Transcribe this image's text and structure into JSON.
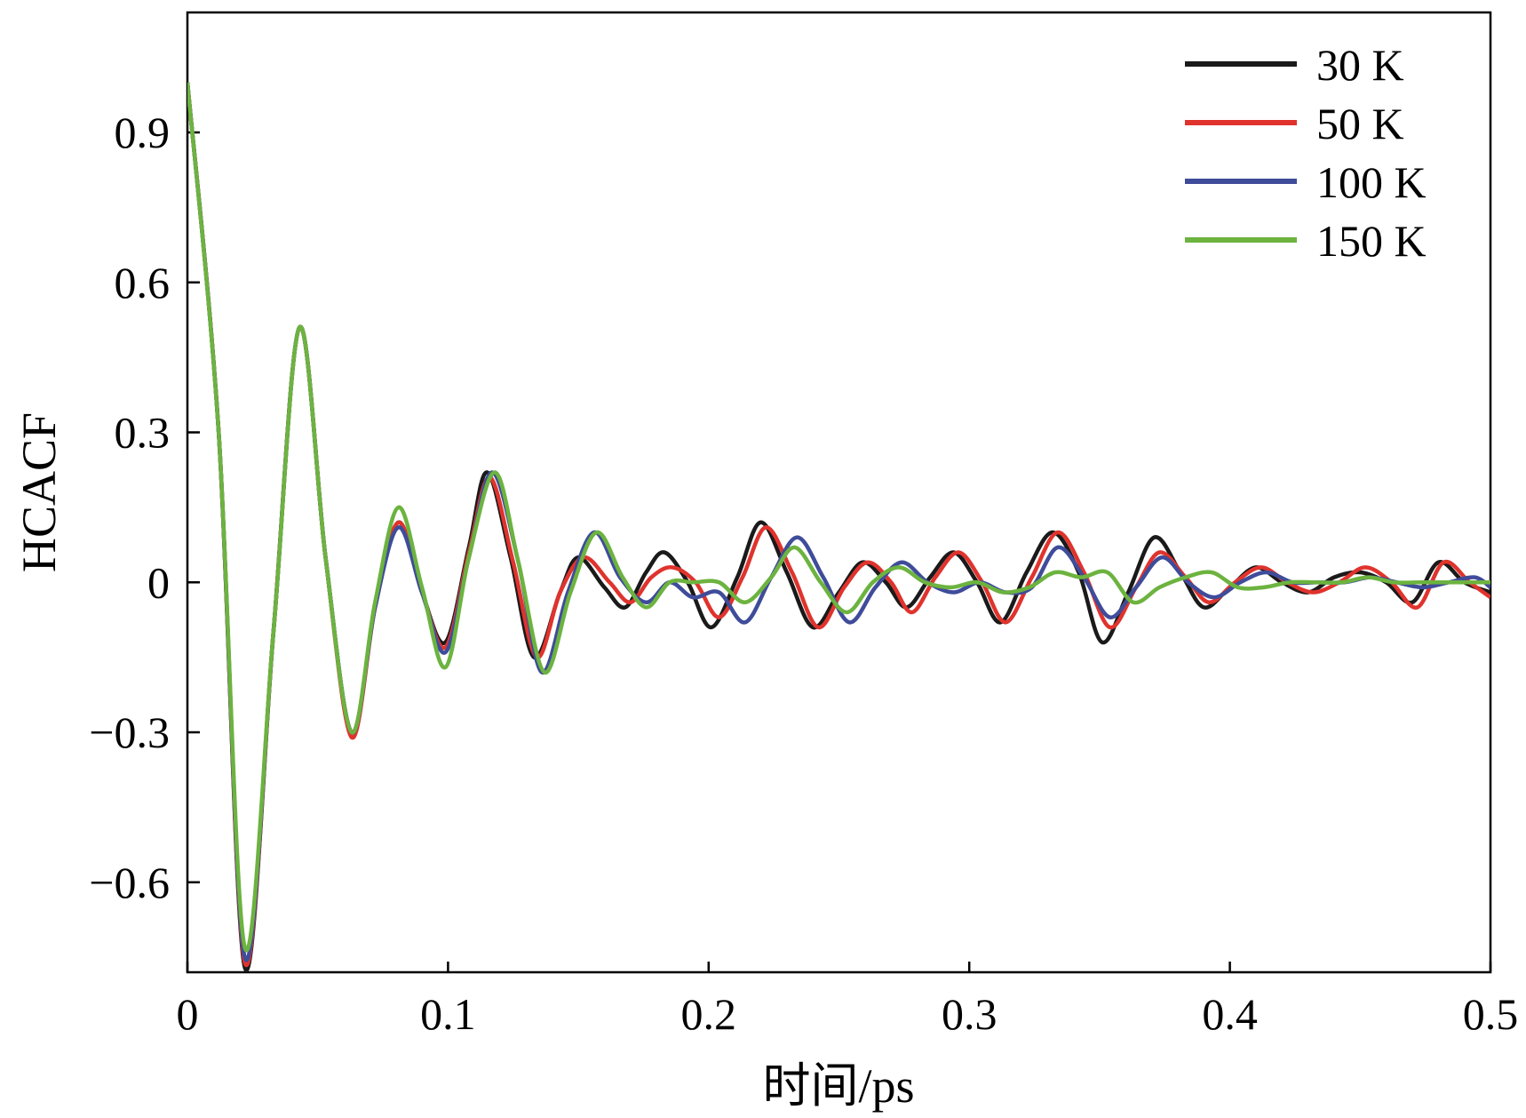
{
  "chart_data": {
    "type": "line",
    "xlabel": "时间/ps",
    "ylabel": "HCACF",
    "xlim": [
      0,
      0.5
    ],
    "ylim": [
      -0.78,
      1.14
    ],
    "xticks": [
      0,
      0.1,
      0.2,
      0.3,
      0.4,
      0.5
    ],
    "xtick_labels": [
      "0",
      "0.1",
      "0.2",
      "0.3",
      "0.4",
      "0.5"
    ],
    "yticks": [
      0.9,
      0.6,
      0.3,
      0,
      -0.3,
      -0.6
    ],
    "ytick_labels": [
      "0.9",
      "0.6",
      "0.3",
      "0",
      "−0.3",
      "−0.6"
    ],
    "grid": false,
    "legend": "top-right",
    "series": [
      {
        "name": "30 K",
        "color": "#1a1a1a",
        "x": [
          0,
          0.012,
          0.022,
          0.033,
          0.043,
          0.053,
          0.063,
          0.072,
          0.081,
          0.09,
          0.099,
          0.108,
          0.115,
          0.124,
          0.133,
          0.143,
          0.15,
          0.16,
          0.168,
          0.176,
          0.183,
          0.192,
          0.201,
          0.211,
          0.22,
          0.23,
          0.24,
          0.25,
          0.259,
          0.268,
          0.276,
          0.285,
          0.294,
          0.303,
          0.312,
          0.322,
          0.332,
          0.342,
          0.351,
          0.361,
          0.371,
          0.381,
          0.39,
          0.4,
          0.41,
          0.42,
          0.43,
          0.44,
          0.45,
          0.46,
          0.47,
          0.48,
          0.49,
          0.5
        ],
        "y": [
          1.0,
          0.3,
          -0.77,
          -0.1,
          0.51,
          0.05,
          -0.3,
          -0.05,
          0.12,
          -0.02,
          -0.12,
          0.07,
          0.22,
          0.05,
          -0.15,
          -0.02,
          0.05,
          -0.01,
          -0.05,
          0.02,
          0.06,
          0.0,
          -0.09,
          0.01,
          0.12,
          0.02,
          -0.09,
          -0.02,
          0.04,
          0.0,
          -0.05,
          0.01,
          0.06,
          0.0,
          -0.08,
          0.02,
          0.1,
          0.02,
          -0.12,
          -0.02,
          0.09,
          0.02,
          -0.05,
          -0.01,
          0.03,
          0.0,
          -0.02,
          0.01,
          0.02,
          0.0,
          -0.04,
          0.04,
          0.0,
          -0.02
        ]
      },
      {
        "name": "50 K",
        "color": "#e0332d",
        "x": [
          0,
          0.012,
          0.022,
          0.033,
          0.043,
          0.053,
          0.063,
          0.072,
          0.081,
          0.09,
          0.099,
          0.108,
          0.116,
          0.125,
          0.134,
          0.143,
          0.152,
          0.162,
          0.17,
          0.178,
          0.186,
          0.195,
          0.204,
          0.213,
          0.222,
          0.232,
          0.242,
          0.252,
          0.261,
          0.27,
          0.278,
          0.287,
          0.296,
          0.305,
          0.314,
          0.324,
          0.334,
          0.344,
          0.354,
          0.364,
          0.373,
          0.383,
          0.392,
          0.402,
          0.412,
          0.422,
          0.432,
          0.442,
          0.452,
          0.462,
          0.472,
          0.482,
          0.492,
          0.5
        ],
        "y": [
          1.0,
          0.3,
          -0.76,
          -0.1,
          0.51,
          0.05,
          -0.31,
          -0.05,
          0.12,
          -0.02,
          -0.13,
          0.06,
          0.21,
          0.04,
          -0.15,
          -0.02,
          0.05,
          0.0,
          -0.04,
          0.01,
          0.03,
          0.0,
          -0.07,
          0.01,
          0.11,
          0.02,
          -0.09,
          -0.01,
          0.04,
          0.0,
          -0.06,
          0.01,
          0.06,
          0.0,
          -0.08,
          0.01,
          0.1,
          0.02,
          -0.09,
          -0.01,
          0.06,
          0.01,
          -0.04,
          0.0,
          0.03,
          0.0,
          -0.02,
          0.0,
          0.03,
          0.0,
          -0.05,
          0.04,
          0.0,
          -0.03
        ]
      },
      {
        "name": "100 K",
        "color": "#3f4c9a",
        "x": [
          0,
          0.012,
          0.022,
          0.033,
          0.043,
          0.053,
          0.063,
          0.072,
          0.081,
          0.09,
          0.099,
          0.108,
          0.117,
          0.127,
          0.136,
          0.146,
          0.156,
          0.166,
          0.176,
          0.185,
          0.194,
          0.204,
          0.214,
          0.224,
          0.234,
          0.244,
          0.254,
          0.264,
          0.274,
          0.284,
          0.294,
          0.304,
          0.314,
          0.324,
          0.334,
          0.344,
          0.354,
          0.364,
          0.374,
          0.384,
          0.394,
          0.404,
          0.414,
          0.424,
          0.434,
          0.444,
          0.454,
          0.464,
          0.474,
          0.484,
          0.494,
          0.5
        ],
        "y": [
          1.0,
          0.3,
          -0.75,
          -0.1,
          0.51,
          0.05,
          -0.3,
          -0.05,
          0.11,
          -0.02,
          -0.14,
          0.05,
          0.22,
          0.04,
          -0.18,
          -0.02,
          0.1,
          0.01,
          -0.04,
          0.0,
          -0.03,
          -0.02,
          -0.08,
          0.01,
          0.09,
          0.01,
          -0.08,
          -0.01,
          0.04,
          0.0,
          -0.02,
          0.0,
          -0.02,
          -0.01,
          0.07,
          0.01,
          -0.07,
          -0.01,
          0.05,
          0.0,
          -0.03,
          0.0,
          0.02,
          0.0,
          0.0,
          0.0,
          0.01,
          0.0,
          -0.01,
          0.0,
          0.01,
          -0.01
        ]
      },
      {
        "name": "150 K",
        "color": "#6cb33f",
        "x": [
          0,
          0.012,
          0.022,
          0.033,
          0.043,
          0.053,
          0.063,
          0.072,
          0.081,
          0.09,
          0.099,
          0.108,
          0.118,
          0.127,
          0.137,
          0.147,
          0.157,
          0.167,
          0.176,
          0.185,
          0.194,
          0.204,
          0.214,
          0.224,
          0.233,
          0.243,
          0.253,
          0.263,
          0.273,
          0.283,
          0.293,
          0.303,
          0.313,
          0.323,
          0.333,
          0.343,
          0.353,
          0.363,
          0.373,
          0.383,
          0.393,
          0.403,
          0.413,
          0.423,
          0.433,
          0.443,
          0.453,
          0.463,
          0.473,
          0.483,
          0.493,
          0.5
        ],
        "y": [
          1.0,
          0.3,
          -0.73,
          -0.1,
          0.51,
          0.05,
          -0.3,
          -0.04,
          0.15,
          -0.01,
          -0.17,
          0.05,
          0.22,
          0.04,
          -0.18,
          -0.02,
          0.1,
          0.01,
          -0.05,
          0.0,
          0.0,
          0.0,
          -0.04,
          0.01,
          0.07,
          0.0,
          -0.06,
          0.0,
          0.03,
          0.0,
          -0.01,
          0.0,
          -0.02,
          -0.01,
          0.02,
          0.01,
          0.02,
          -0.04,
          -0.01,
          0.01,
          0.02,
          -0.01,
          -0.01,
          0.0,
          0.0,
          0.0,
          0.01,
          0.0,
          0.0,
          0.0,
          0.0,
          0.0
        ]
      }
    ]
  }
}
